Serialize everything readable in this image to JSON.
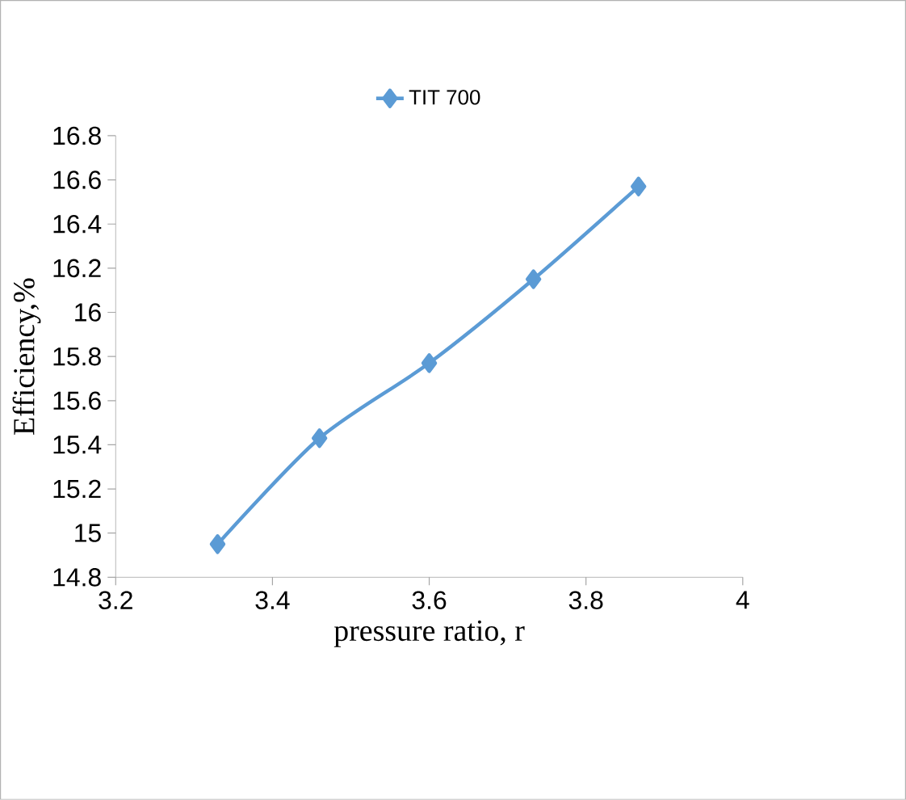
{
  "chart_data": {
    "type": "line",
    "xlabel": "pressure ratio, r",
    "ylabel": "Efficiency,%",
    "series": [
      {
        "name": "TIT 700",
        "color": "#5b9bd5",
        "x": [
          3.33,
          3.46,
          3.6,
          3.733,
          3.867
        ],
        "values": [
          14.95,
          15.43,
          15.77,
          16.15,
          16.57
        ]
      }
    ],
    "xlim": [
      3.2,
      4
    ],
    "ylim": [
      14.8,
      16.8
    ],
    "xticks": [
      3.2,
      3.4,
      3.6,
      3.8,
      4
    ],
    "yticks": [
      14.8,
      15,
      15.2,
      15.4,
      15.6,
      15.8,
      16,
      16.2,
      16.4,
      16.6,
      16.8
    ],
    "grid": false,
    "legend": "top",
    "marker": "diamond",
    "line_style": "solid"
  }
}
